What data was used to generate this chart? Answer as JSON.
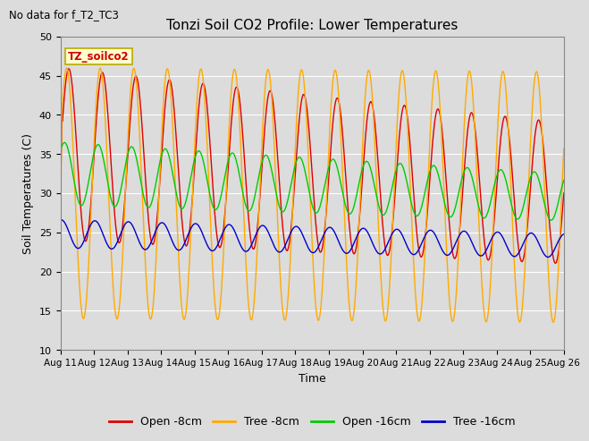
{
  "title": "Tonzi Soil CO2 Profile: Lower Temperatures",
  "subtitle": "No data for f_T2_TC3",
  "xlabel": "Time",
  "ylabel": "Soil Temperatures (C)",
  "ylim": [
    10,
    50
  ],
  "yticks": [
    10,
    15,
    20,
    25,
    30,
    35,
    40,
    45,
    50
  ],
  "x_labels": [
    "Aug 11",
    "Aug 12",
    "Aug 13",
    "Aug 14",
    "Aug 15",
    "Aug 16",
    "Aug 17",
    "Aug 18",
    "Aug 19",
    "Aug 20",
    "Aug 21",
    "Aug 22",
    "Aug 23",
    "Aug 24",
    "Aug 25",
    "Aug 26"
  ],
  "legend_box_label": "TZ_soilco2",
  "legend_box_color": "#ffffcc",
  "legend_box_text_color": "#cc0000",
  "background_color": "#dcdcdc",
  "plot_bg_color": "#dcdcdc",
  "colors": {
    "open_8cm": "#dd0000",
    "tree_8cm": "#ffaa00",
    "open_16cm": "#00cc00",
    "tree_16cm": "#0000cc"
  }
}
